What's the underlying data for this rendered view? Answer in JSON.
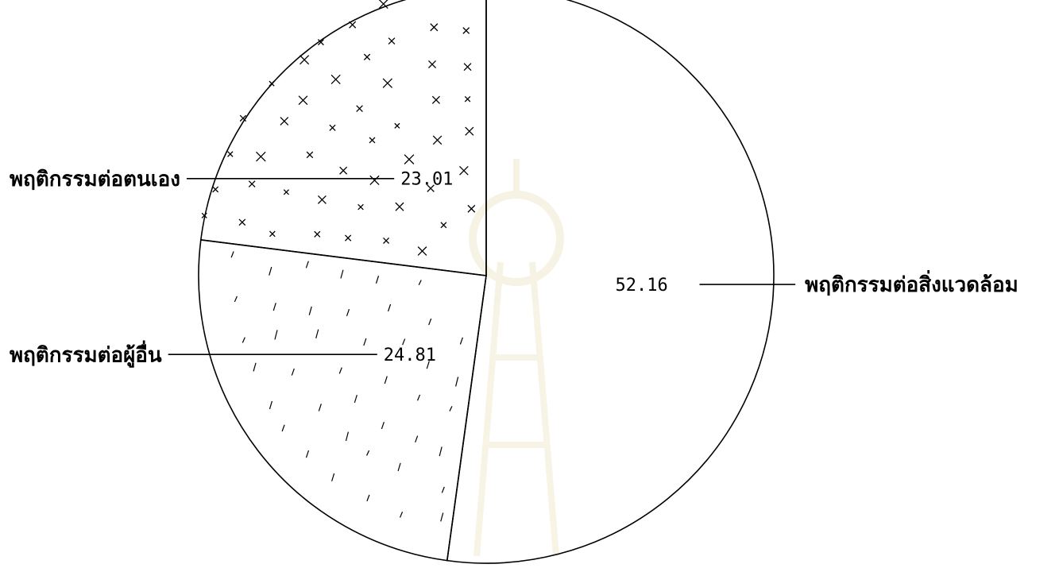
{
  "chart_data": {
    "type": "pie",
    "categories": [
      "พฤติกรรมต่อสิ่งแวดล้อม",
      "พฤติกรรมต่อผู้อื่น",
      "พฤติกรรมต่อตนเอง"
    ],
    "values": [
      52.16,
      24.81,
      23.01
    ],
    "data_labels": [
      "52.16",
      "24.81",
      "23.01"
    ],
    "slice_patterns": [
      "none",
      "slash-marks",
      "x-marks"
    ],
    "start_angle_deg": 0,
    "direction": "clockwise",
    "legend": "none",
    "grid": false,
    "title": "",
    "colors": {
      "stroke": "#000000",
      "background": "#ffffff",
      "watermark": "#e8dcb4"
    }
  }
}
